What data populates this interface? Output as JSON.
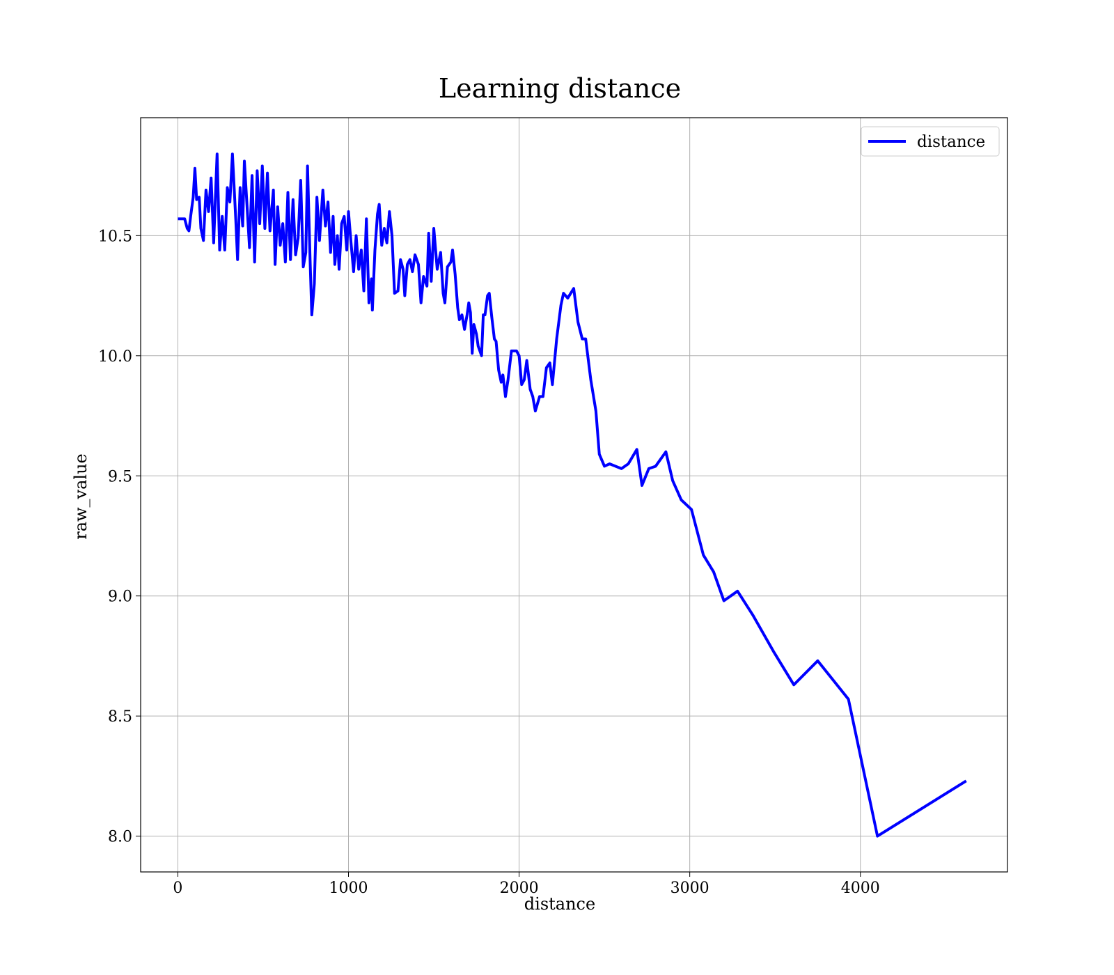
{
  "chart_data": {
    "type": "line",
    "title": "Learning distance",
    "xlabel": "distance",
    "ylabel": "raw_value",
    "x": [
      0,
      40,
      55,
      65,
      75,
      90,
      100,
      110,
      125,
      135,
      150,
      165,
      180,
      195,
      210,
      230,
      245,
      260,
      275,
      290,
      305,
      320,
      340,
      350,
      365,
      380,
      390,
      405,
      420,
      435,
      450,
      465,
      480,
      495,
      510,
      525,
      540,
      560,
      570,
      585,
      600,
      615,
      630,
      645,
      660,
      675,
      690,
      705,
      720,
      735,
      750,
      760,
      775,
      785,
      800,
      815,
      830,
      850,
      865,
      880,
      895,
      910,
      920,
      935,
      945,
      960,
      975,
      990,
      1000,
      1015,
      1030,
      1045,
      1060,
      1075,
      1090,
      1105,
      1120,
      1135,
      1140,
      1155,
      1170,
      1180,
      1195,
      1210,
      1225,
      1240,
      1255,
      1270,
      1290,
      1305,
      1320,
      1330,
      1345,
      1360,
      1375,
      1390,
      1410,
      1425,
      1440,
      1460,
      1470,
      1485,
      1500,
      1520,
      1540,
      1555,
      1565,
      1580,
      1600,
      1610,
      1625,
      1640,
      1650,
      1665,
      1680,
      1695,
      1705,
      1715,
      1725,
      1735,
      1750,
      1760,
      1780,
      1790,
      1800,
      1815,
      1825,
      1840,
      1855,
      1865,
      1880,
      1895,
      1905,
      1920,
      1935,
      1955,
      1970,
      1985,
      2000,
      2015,
      2030,
      2045,
      2065,
      2080,
      2095,
      2120,
      2140,
      2160,
      2180,
      2195,
      2220,
      2245,
      2260,
      2285,
      2320,
      2345,
      2370,
      2390,
      2420,
      2450,
      2470,
      2500,
      2530,
      2600,
      2640,
      2690,
      2720,
      2760,
      2800,
      2860,
      2900,
      2950,
      3010,
      3080,
      3140,
      3200,
      3280,
      3370,
      3490,
      3610,
      3750,
      3930,
      4100,
      4620
    ],
    "series": [
      {
        "name": "distance",
        "color": "#0000ff",
        "values": [
          10.57,
          10.57,
          10.53,
          10.52,
          10.58,
          10.66,
          10.78,
          10.65,
          10.66,
          10.53,
          10.48,
          10.69,
          10.6,
          10.74,
          10.47,
          10.84,
          10.44,
          10.58,
          10.44,
          10.7,
          10.64,
          10.84,
          10.56,
          10.4,
          10.7,
          10.54,
          10.81,
          10.63,
          10.45,
          10.75,
          10.39,
          10.77,
          10.55,
          10.79,
          10.53,
          10.76,
          10.52,
          10.69,
          10.38,
          10.62,
          10.46,
          10.55,
          10.39,
          10.68,
          10.4,
          10.65,
          10.42,
          10.49,
          10.73,
          10.37,
          10.43,
          10.79,
          10.4,
          10.17,
          10.3,
          10.66,
          10.48,
          10.69,
          10.54,
          10.64,
          10.43,
          10.58,
          10.38,
          10.5,
          10.36,
          10.55,
          10.58,
          10.44,
          10.6,
          10.47,
          10.35,
          10.5,
          10.36,
          10.44,
          10.27,
          10.57,
          10.22,
          10.32,
          10.19,
          10.44,
          10.59,
          10.63,
          10.46,
          10.53,
          10.47,
          10.6,
          10.5,
          10.26,
          10.27,
          10.4,
          10.36,
          10.25,
          10.38,
          10.4,
          10.35,
          10.42,
          10.38,
          10.22,
          10.33,
          10.29,
          10.51,
          10.31,
          10.53,
          10.36,
          10.43,
          10.26,
          10.22,
          10.37,
          10.39,
          10.44,
          10.34,
          10.2,
          10.15,
          10.17,
          10.11,
          10.17,
          10.22,
          10.18,
          10.01,
          10.13,
          10.09,
          10.04,
          10.0,
          10.17,
          10.17,
          10.25,
          10.26,
          10.16,
          10.07,
          10.06,
          9.94,
          9.89,
          9.92,
          9.83,
          9.9,
          10.02,
          10.02,
          10.02,
          10.0,
          9.88,
          9.9,
          9.98,
          9.86,
          9.83,
          9.77,
          9.83,
          9.83,
          9.95,
          9.97,
          9.88,
          10.07,
          10.21,
          10.26,
          10.24,
          10.28,
          10.14,
          10.07,
          10.07,
          9.9,
          9.77,
          9.59,
          9.54,
          9.55,
          9.53,
          9.55,
          9.61,
          9.46,
          9.53,
          9.54,
          9.6,
          9.48,
          9.4,
          9.36,
          9.17,
          9.1,
          8.98,
          9.02,
          8.92,
          8.77,
          8.63,
          8.73,
          8.57,
          8.0,
          8.23
        ]
      }
    ],
    "xlim": [
      -218,
      4862
    ],
    "ylim": [
      7.851,
      10.991
    ],
    "xticks": [
      0,
      1000,
      2000,
      3000,
      4000
    ],
    "yticks": [
      {
        "value": 8.0,
        "label": "8.0"
      },
      8.5,
      {
        "value": 9.0,
        "label": "9.0"
      },
      9.5,
      {
        "value": 10.0,
        "label": "10.0"
      },
      10.5
    ],
    "grid": true,
    "legend": "upper right"
  }
}
